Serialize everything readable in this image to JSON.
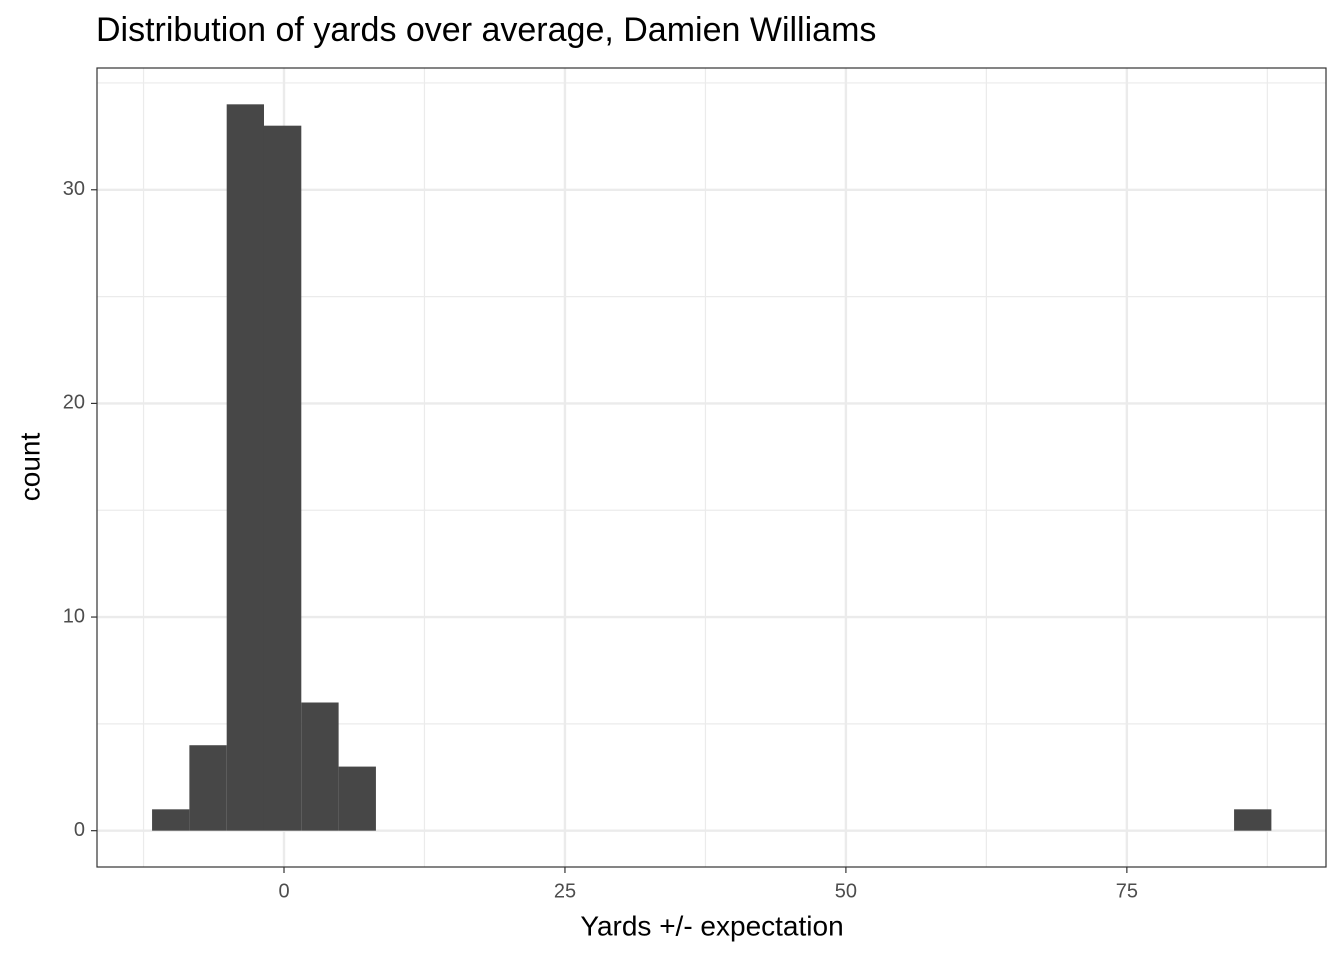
{
  "chart_data": {
    "type": "histogram",
    "title": "Distribution of yards over average, Damien Williams",
    "x_label": "Yards +/- expectation",
    "y_label": "count",
    "bins": [
      -11.74,
      -8.42,
      -5.1,
      -1.78,
      1.54,
      4.86,
      8.18,
      11.5,
      14.82,
      18.14,
      21.46,
      24.78,
      28.1,
      31.42,
      34.74,
      38.06,
      41.38,
      44.7,
      48.02,
      51.34,
      54.66,
      57.98,
      61.3,
      64.62,
      67.94,
      71.26,
      74.58,
      77.9,
      81.22,
      84.54,
      87.86
    ],
    "values": [
      1,
      4,
      34,
      33,
      6,
      3,
      0,
      0,
      0,
      0,
      0,
      0,
      0,
      0,
      0,
      0,
      0,
      0,
      0,
      0,
      0,
      0,
      0,
      0,
      0,
      0,
      0,
      0,
      0,
      1
    ],
    "color": "#474747",
    "xlim": [
      -16.64,
      92.72
    ],
    "xticks": [
      0,
      25,
      50,
      75
    ],
    "minor_xticks": [
      -12.5,
      12.5,
      37.5,
      62.5,
      87.5
    ],
    "ylim": [
      -1.7,
      35.7
    ],
    "yticks": [
      0,
      10,
      20,
      30
    ],
    "minor_yticks": [
      5,
      15,
      25,
      35
    ],
    "grid": true
  }
}
